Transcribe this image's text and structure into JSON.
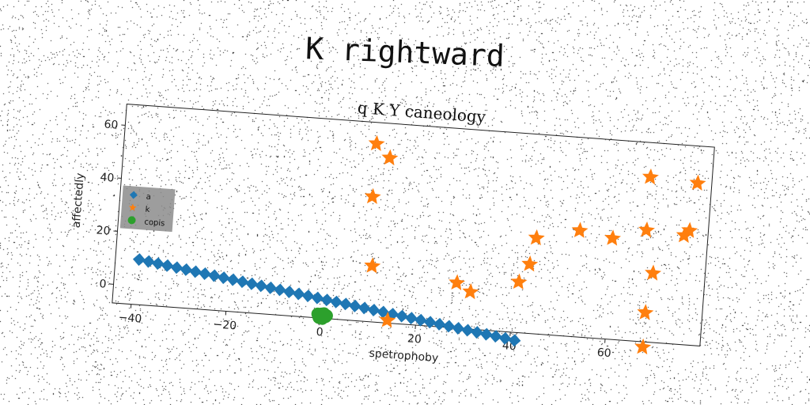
{
  "figure_title": "K rightward",
  "chart_data": {
    "type": "scatter",
    "title": "q K Y caneology",
    "xlabel": "spetrophoby",
    "ylabel": "affectedly",
    "xlim": [
      -44,
      80
    ],
    "ylim": [
      -7,
      68
    ],
    "xticks": [
      -40,
      -20,
      0,
      20,
      40,
      60
    ],
    "yticks": [
      0,
      20,
      40,
      60
    ],
    "grid": false,
    "legend_position": "center-left",
    "series": [
      {
        "name": "a",
        "marker": "diamond",
        "color": "#1f77b4",
        "x": [
          -39.0,
          -37.0,
          -35.0,
          -33.0,
          -31.0,
          -29.0,
          -27.0,
          -25.0,
          -23.0,
          -21.0,
          -19.0,
          -17.0,
          -15.0,
          -13.0,
          -11.0,
          -9.0,
          -7.0,
          -5.0,
          -3.0,
          -1.0,
          1.0,
          3.0,
          5.0,
          7.0,
          9.0,
          11.0,
          13.0,
          15.0,
          17.0,
          19.0,
          21.0,
          23.0,
          25.0,
          27.0,
          29.0,
          31.0,
          33.0,
          35.0,
          37.0,
          39.0,
          41.0
        ],
        "y": [
          10.0,
          9.5,
          9.0,
          8.5,
          8.0,
          7.5,
          7.0,
          6.5,
          6.0,
          5.5,
          5.0,
          4.5,
          4.0,
          3.5,
          3.0,
          2.5,
          2.0,
          1.5,
          1.0,
          0.5,
          0.0,
          -0.5,
          -1.0,
          -1.5,
          -2.0,
          -2.5,
          -3.0,
          -3.5,
          -4.0,
          -4.5,
          -5.0,
          -5.5,
          -6.0,
          -6.5,
          -7.0,
          -7.5,
          -8.0,
          -8.5,
          -9.0,
          -9.5,
          -10.0
        ]
      },
      {
        "name": "k",
        "marker": "star",
        "color": "#ff7f0e",
        "x": [
          9,
          12,
          9,
          10,
          14,
          28,
          31,
          41,
          43,
          44,
          53,
          60,
          67,
          68,
          68,
          69,
          75,
          76,
          77,
          67
        ],
        "y": [
          60,
          55,
          40,
          14,
          -6,
          10,
          7,
          12,
          19,
          29,
          33,
          31,
          55,
          4,
          -9,
          19,
          34,
          36,
          54,
          35
        ]
      },
      {
        "name": "copis",
        "marker": "circle",
        "color": "#2ca02c",
        "x": [
          0.0,
          0.6,
          -0.4,
          1.0,
          0.3,
          -0.7,
          0.8,
          -0.2,
          0.5,
          -0.5,
          1.2,
          0.1
        ],
        "y": [
          -6.0,
          -5.2,
          -6.8,
          -6.3,
          -7.1,
          -5.5,
          -5.7,
          -6.1,
          -6.6,
          -6.2,
          -5.9,
          -5.4
        ]
      }
    ]
  }
}
